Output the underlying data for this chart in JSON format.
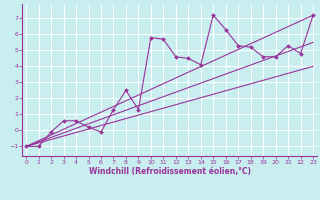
{
  "bg_color": "#c8eef0",
  "grid_color": "#ffffff",
  "line_color": "#993399",
  "marker_color": "#993399",
  "x_data": [
    0,
    1,
    2,
    3,
    4,
    5,
    6,
    7,
    8,
    9,
    10,
    11,
    12,
    13,
    14,
    15,
    16,
    17,
    18,
    19,
    20,
    21,
    22,
    23
  ],
  "y_main": [
    -1,
    -1,
    -0.1,
    0.6,
    0.6,
    0.2,
    -0.1,
    1.3,
    2.5,
    1.3,
    5.8,
    5.7,
    4.6,
    4.5,
    4.1,
    7.2,
    6.3,
    5.3,
    5.2,
    4.6,
    4.6,
    5.3,
    4.8,
    7.2
  ],
  "trend1_x": [
    0,
    23
  ],
  "trend1_y": [
    -1.0,
    7.2
  ],
  "trend2_x": [
    0,
    23
  ],
  "trend2_y": [
    -1.0,
    4.0
  ],
  "trend3_x": [
    0,
    23
  ],
  "trend3_y": [
    -1.0,
    5.5
  ],
  "xlim": [
    -0.3,
    23.3
  ],
  "ylim": [
    -1.6,
    7.9
  ],
  "yticks": [
    -1,
    0,
    1,
    2,
    3,
    4,
    5,
    6,
    7
  ],
  "xticks": [
    0,
    1,
    2,
    3,
    4,
    5,
    6,
    7,
    8,
    9,
    10,
    11,
    12,
    13,
    14,
    15,
    16,
    17,
    18,
    19,
    20,
    21,
    22,
    23
  ],
  "xlabel": "Windchill (Refroidissement éolien,°C)",
  "tick_fontsize": 4.5,
  "xlabel_fontsize": 5.5
}
